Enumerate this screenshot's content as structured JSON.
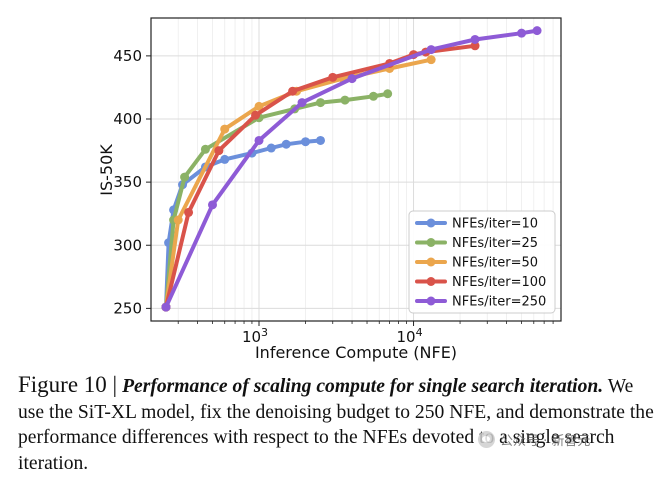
{
  "chart_data": {
    "type": "line",
    "xlabel": "Inference Compute (NFE)",
    "ylabel": "IS-50K",
    "xscale": "log",
    "xlim": [
      200,
      90000
    ],
    "ylim": [
      240,
      480
    ],
    "yticks": [
      250,
      300,
      350,
      400,
      450
    ],
    "xticks": [
      {
        "value": 1000,
        "base": "10",
        "exp": "3"
      },
      {
        "value": 10000,
        "base": "10",
        "exp": "4"
      }
    ],
    "grid": true,
    "legend_position": "lower-right",
    "series": [
      {
        "name": "NFEs/iter=10",
        "color": "#6b8fdb",
        "x": [
          250,
          260,
          280,
          320,
          450,
          600,
          900,
          1200,
          1500,
          2000,
          2500
        ],
        "y": [
          251,
          302,
          328,
          348,
          362,
          368,
          373,
          377,
          380,
          382,
          383
        ]
      },
      {
        "name": "NFEs/iter=25",
        "color": "#8bb266",
        "x": [
          250,
          280,
          330,
          450,
          1000,
          1700,
          2500,
          3600,
          5500,
          6800
        ],
        "y": [
          251,
          320,
          354,
          376,
          401,
          408,
          413,
          415,
          418,
          420
        ]
      },
      {
        "name": "NFEs/iter=50",
        "color": "#eba64d",
        "x": [
          250,
          300,
          600,
          1000,
          1750,
          3500,
          7000,
          13000
        ],
        "y": [
          251,
          320,
          392,
          410,
          422,
          432,
          440,
          447
        ]
      },
      {
        "name": "NFEs/iter=100",
        "color": "#d9534a",
        "x": [
          250,
          350,
          550,
          950,
          1650,
          3000,
          7000,
          10000,
          12000,
          25000
        ],
        "y": [
          251,
          326,
          375,
          403,
          422,
          433,
          444,
          451,
          453,
          458
        ]
      },
      {
        "name": "NFEs/iter=250",
        "color": "#8e5bd6",
        "x": [
          250,
          500,
          1000,
          1900,
          4000,
          13000,
          25000,
          50000,
          63000
        ],
        "y": [
          251,
          332,
          383,
          413,
          432,
          455,
          463,
          468,
          470
        ]
      }
    ]
  },
  "caption": {
    "figure_number": "Figure 10 |",
    "title": "Performance of scaling compute for single search iteration.",
    "body": " We use the SiT-XL model, fix the denoising budget to 250 NFE, and demonstrate the performance differences with respect to the NFEs devoted to a single search iteration."
  },
  "watermark": {
    "text": "公众号 · 新智元",
    "icon": "wechat-icon"
  }
}
